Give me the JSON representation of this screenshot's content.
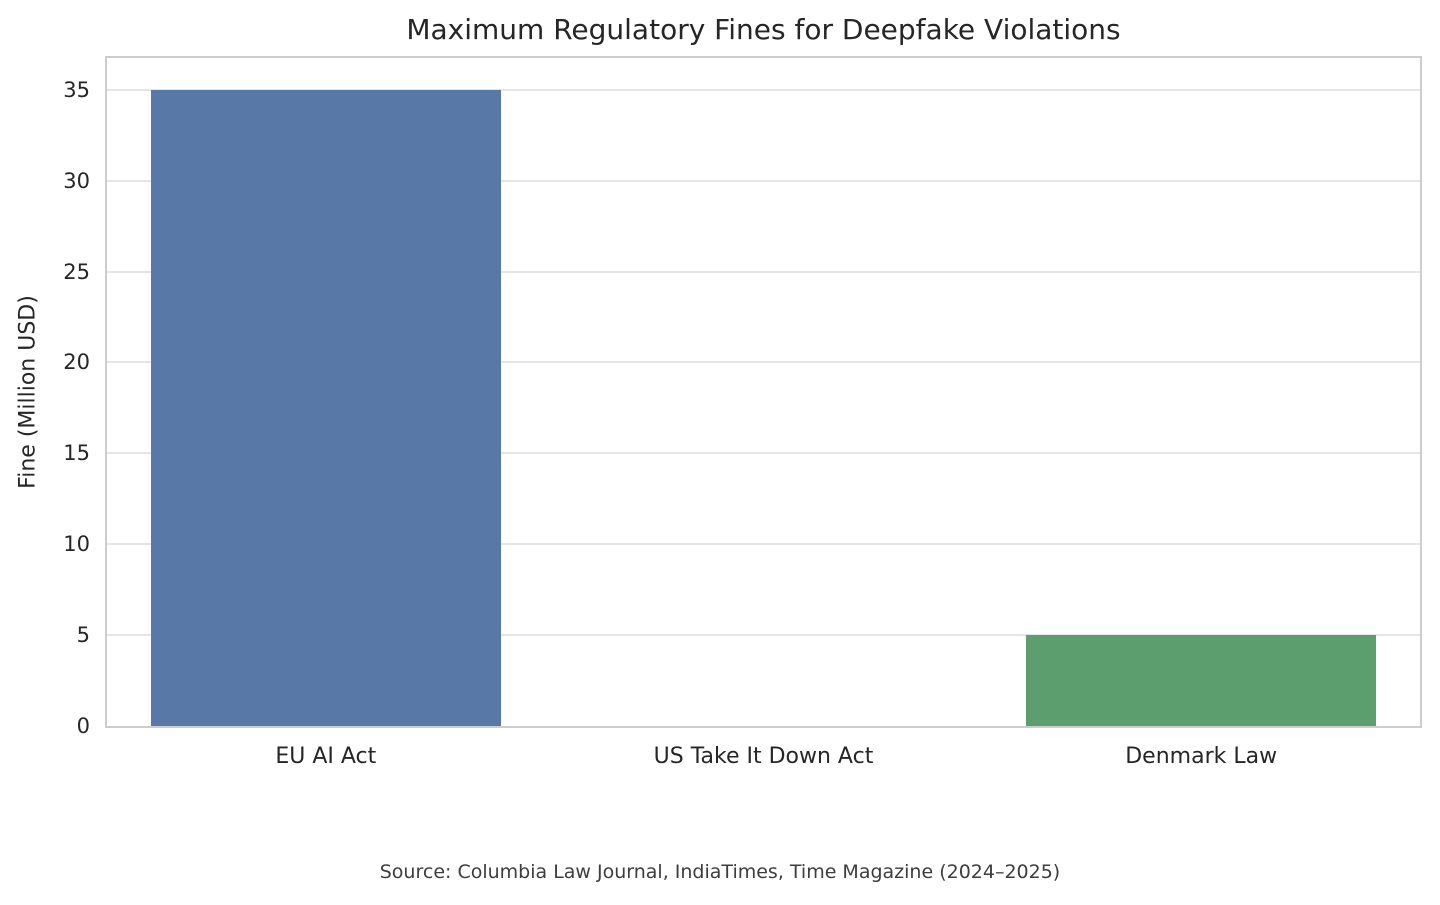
{
  "chart_data": {
    "type": "bar",
    "title": "Maximum Regulatory Fines for Deepfake Violations",
    "xlabel": "",
    "ylabel": "Fine (Million USD)",
    "categories": [
      "EU AI Act",
      "US Take It Down Act",
      "Denmark Law"
    ],
    "values": [
      35,
      0,
      5
    ],
    "bar_colors": [
      "#5878a8",
      null,
      "#5c9e6e"
    ],
    "yticks": [
      0,
      5,
      10,
      15,
      20,
      25,
      30,
      35
    ],
    "ylim": [
      0,
      36.75
    ],
    "grid": "horizontal",
    "grid_color": "#e5e5e5",
    "spine_color": "#cdcdcd",
    "legend": "none",
    "bar_width_fraction": 0.8,
    "source": "Source: Columbia Law Journal, IndiaTimes, Time Magazine (2024–2025)"
  }
}
